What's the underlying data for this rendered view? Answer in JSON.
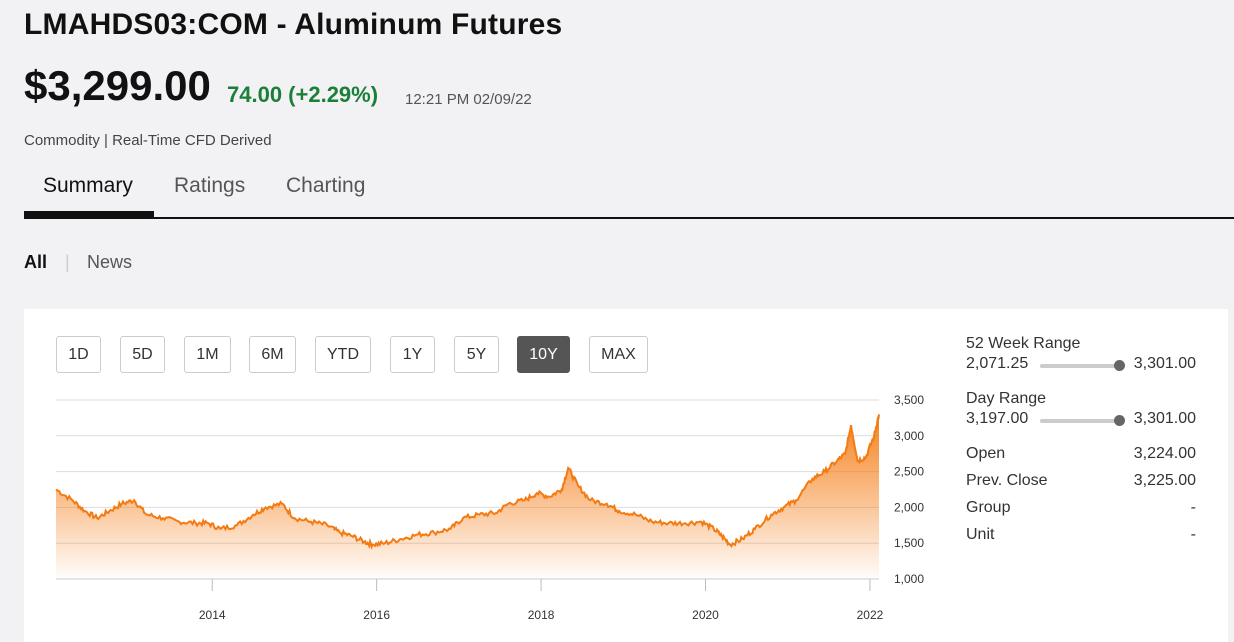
{
  "header": {
    "title": "LMAHDS03:COM - Aluminum Futures",
    "price": "$3,299.00",
    "change": "74.00 (+2.29%)",
    "timestamp": "12:21 PM 02/09/22",
    "subtitle": "Commodity | Real-Time CFD Derived",
    "change_color": "#1a7f37"
  },
  "tabs": [
    {
      "label": "Summary",
      "active": true
    },
    {
      "label": "Ratings",
      "active": false
    },
    {
      "label": "Charting",
      "active": false
    }
  ],
  "filters": [
    {
      "label": "All",
      "active": true
    },
    {
      "label": "News",
      "active": false
    }
  ],
  "range_buttons": [
    {
      "label": "1D",
      "active": false
    },
    {
      "label": "5D",
      "active": false
    },
    {
      "label": "1M",
      "active": false
    },
    {
      "label": "6M",
      "active": false
    },
    {
      "label": "YTD",
      "active": false
    },
    {
      "label": "1Y",
      "active": false
    },
    {
      "label": "5Y",
      "active": false
    },
    {
      "label": "10Y",
      "active": true
    },
    {
      "label": "MAX",
      "active": false
    }
  ],
  "stats": {
    "week52": {
      "label": "52 Week Range",
      "low": "2,071.25",
      "high": "3,301.00",
      "position": 1.0
    },
    "day": {
      "label": "Day Range",
      "low": "3,197.00",
      "high": "3,301.00",
      "position": 1.0
    },
    "rows": [
      {
        "label": "Open",
        "value": "3,224.00"
      },
      {
        "label": "Prev. Close",
        "value": "3,225.00"
      },
      {
        "label": "Group",
        "value": "-"
      },
      {
        "label": "Unit",
        "value": "-"
      }
    ]
  },
  "chart_data": {
    "type": "area",
    "color": "#f47a12",
    "x_ticks": [
      "2014",
      "2016",
      "2018",
      "2020",
      "2022"
    ],
    "y_ticks": [
      "3,500",
      "3,000",
      "2,500",
      "2,000",
      "1,500",
      "1,000"
    ],
    "ylim": [
      1000,
      3500
    ],
    "xlim": [
      2012.1,
      2022.11
    ],
    "series": [
      {
        "points": [
          [
            2012.1,
            2250
          ],
          [
            2012.3,
            2100
          ],
          [
            2012.45,
            1950
          ],
          [
            2012.6,
            1850
          ],
          [
            2012.75,
            1950
          ],
          [
            2012.9,
            2050
          ],
          [
            2013.05,
            2100
          ],
          [
            2013.2,
            1900
          ],
          [
            2013.4,
            1850
          ],
          [
            2013.6,
            1800
          ],
          [
            2013.8,
            1780
          ],
          [
            2013.95,
            1780
          ],
          [
            2014.1,
            1700
          ],
          [
            2014.3,
            1750
          ],
          [
            2014.5,
            1900
          ],
          [
            2014.65,
            2000
          ],
          [
            2014.85,
            2050
          ],
          [
            2015.0,
            1850
          ],
          [
            2015.2,
            1800
          ],
          [
            2015.4,
            1750
          ],
          [
            2015.55,
            1650
          ],
          [
            2015.7,
            1600
          ],
          [
            2015.85,
            1520
          ],
          [
            2015.95,
            1480
          ],
          [
            2016.1,
            1500
          ],
          [
            2016.3,
            1560
          ],
          [
            2016.5,
            1620
          ],
          [
            2016.7,
            1650
          ],
          [
            2016.9,
            1700
          ],
          [
            2017.05,
            1850
          ],
          [
            2017.25,
            1900
          ],
          [
            2017.45,
            1920
          ],
          [
            2017.6,
            2050
          ],
          [
            2017.8,
            2100
          ],
          [
            2017.95,
            2200
          ],
          [
            2018.1,
            2150
          ],
          [
            2018.25,
            2250
          ],
          [
            2018.33,
            2550
          ],
          [
            2018.45,
            2300
          ],
          [
            2018.6,
            2100
          ],
          [
            2018.8,
            2050
          ],
          [
            2018.95,
            1950
          ],
          [
            2019.15,
            1900
          ],
          [
            2019.35,
            1800
          ],
          [
            2019.55,
            1780
          ],
          [
            2019.75,
            1780
          ],
          [
            2019.95,
            1800
          ],
          [
            2020.1,
            1700
          ],
          [
            2020.2,
            1600
          ],
          [
            2020.3,
            1480
          ],
          [
            2020.45,
            1560
          ],
          [
            2020.6,
            1700
          ],
          [
            2020.8,
            1900
          ],
          [
            2020.95,
            2000
          ],
          [
            2021.1,
            2100
          ],
          [
            2021.3,
            2400
          ],
          [
            2021.45,
            2500
          ],
          [
            2021.6,
            2650
          ],
          [
            2021.7,
            2750
          ],
          [
            2021.77,
            3150
          ],
          [
            2021.85,
            2650
          ],
          [
            2021.95,
            2700
          ],
          [
            2022.05,
            3000
          ],
          [
            2022.11,
            3299
          ]
        ]
      }
    ]
  }
}
